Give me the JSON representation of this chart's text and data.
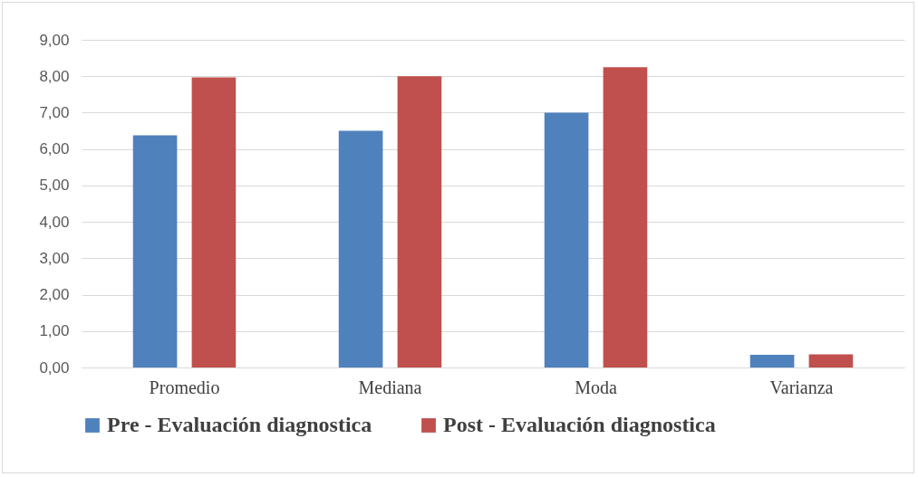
{
  "chart_data": {
    "type": "bar",
    "categories": [
      "Promedio",
      "Mediana",
      "Moda",
      "Varianza"
    ],
    "series": [
      {
        "name": "Pre - Evaluación diagnostica",
        "color": "#4f81bd",
        "values": [
          6.38,
          6.5,
          7.0,
          0.35
        ]
      },
      {
        "name": "Post - Evaluación diagnostica",
        "color": "#c0504d",
        "values": [
          7.97,
          8.0,
          8.25,
          0.36
        ]
      }
    ],
    "ylim": [
      0,
      9
    ],
    "yticks": [
      {
        "value": 0,
        "label": "0,00"
      },
      {
        "value": 1,
        "label": "1,00"
      },
      {
        "value": 2,
        "label": "2,00"
      },
      {
        "value": 3,
        "label": "3,00"
      },
      {
        "value": 4,
        "label": "4,00"
      },
      {
        "value": 5,
        "label": "5,00"
      },
      {
        "value": 6,
        "label": "6,00"
      },
      {
        "value": 7,
        "label": "7,00"
      },
      {
        "value": 8,
        "label": "8,00"
      },
      {
        "value": 9,
        "label": "9,00"
      }
    ],
    "grid": "y",
    "legend": "bottom"
  }
}
